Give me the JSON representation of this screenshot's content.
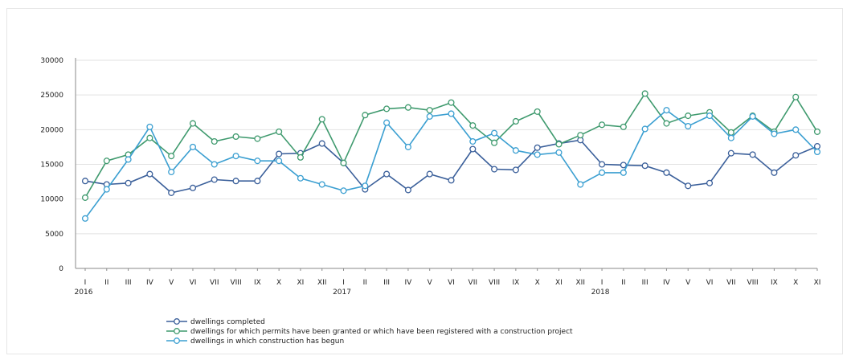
{
  "chart_data": {
    "type": "line",
    "y_ticks": [
      0,
      5000,
      10000,
      15000,
      20000,
      25000,
      30000
    ],
    "y_tick_labels": [
      "0",
      "5000",
      "10000",
      "15000",
      "20000",
      "25000",
      "30000"
    ],
    "ylim": [
      0,
      30000
    ],
    "grid": true,
    "legend_position": "bottom-left",
    "x_labels": [
      "I",
      "II",
      "III",
      "IV",
      "V",
      "VI",
      "VII",
      "VIII",
      "IX",
      "X",
      "XI",
      "XII",
      "I",
      "II",
      "III",
      "IV",
      "V",
      "VI",
      "VII",
      "VIII",
      "IX",
      "X",
      "XI",
      "XII",
      "I",
      "II",
      "III",
      "IV",
      "V",
      "VI",
      "VII",
      "VIII",
      "IX",
      "X",
      "XI"
    ],
    "years": [
      {
        "label": "2016",
        "index": 0
      },
      {
        "label": "2017",
        "index": 12
      },
      {
        "label": "2018",
        "index": 24
      }
    ],
    "series": [
      {
        "name": "dwellings completed",
        "color": "#3a5f9a",
        "values": [
          12600,
          12100,
          12300,
          13600,
          10900,
          11600,
          12800,
          12600,
          12600,
          16500,
          16600,
          18000,
          15200,
          11400,
          13600,
          11300,
          13600,
          12700,
          17200,
          14300,
          14200,
          17400,
          18000,
          18500,
          15000,
          14900,
          14800,
          13800,
          11900,
          12300,
          16600,
          16400,
          13800,
          16300,
          17600
        ]
      },
      {
        "name": "dwellings for which permits have been granted or which have been registered with a construction project",
        "color": "#3f9a6e",
        "values": [
          10200,
          15500,
          16400,
          18800,
          16200,
          20900,
          18300,
          19000,
          18700,
          19700,
          16000,
          21500,
          15200,
          22100,
          23000,
          23200,
          22800,
          23900,
          20600,
          18100,
          21200,
          22600,
          17900,
          19200,
          20700,
          20400,
          25200,
          20900,
          22000,
          22500,
          19600,
          22000,
          19700,
          24700,
          19700
        ]
      },
      {
        "name": "dwellings in which construction has begun",
        "color": "#3b9fd1",
        "values": [
          7200,
          11400,
          15700,
          20400,
          13900,
          17500,
          15000,
          16200,
          15500,
          15500,
          13000,
          12100,
          11200,
          11900,
          21000,
          17500,
          21900,
          22300,
          18300,
          19500,
          17000,
          16400,
          16700,
          12100,
          13800,
          13800,
          20100,
          22800,
          20500,
          22000,
          18800,
          21900,
          19400,
          20000,
          16800
        ]
      }
    ]
  }
}
